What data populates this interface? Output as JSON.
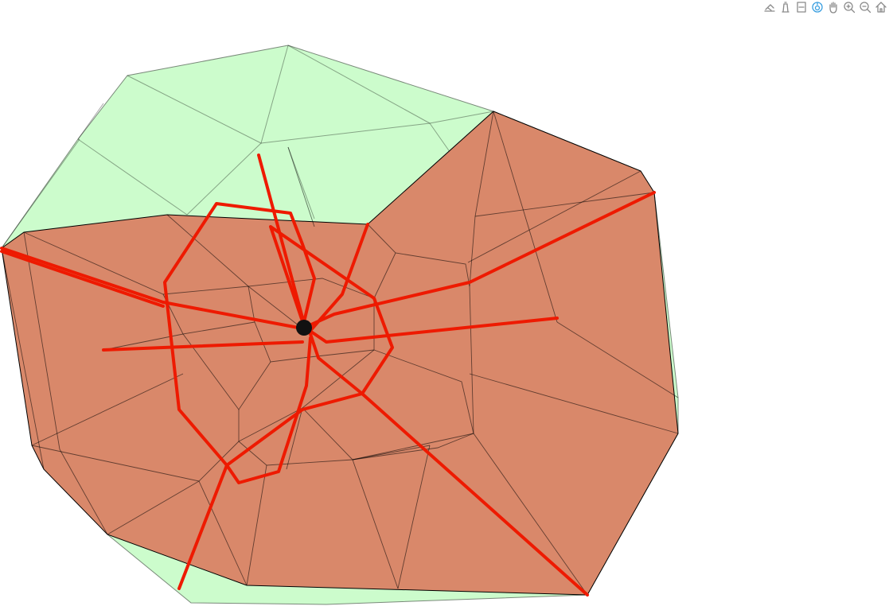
{
  "colors": {
    "outer_surface": "#ccfccc",
    "inner_surface": "#d9886a",
    "mesh_edge": "#000000",
    "route": "#ee1a00",
    "marker": "#111111",
    "icon_default": "#8a8a8a",
    "icon_active": "#3a9fe0"
  },
  "modebar": [
    {
      "icon": "rotate-3d-icon",
      "active": false
    },
    {
      "icon": "orbit-rotation-icon",
      "active": false
    },
    {
      "icon": "table-rotation-icon",
      "active": false
    },
    {
      "icon": "orbit-active-icon",
      "active": true
    },
    {
      "icon": "pan-hand-icon",
      "active": false
    },
    {
      "icon": "zoom-in-icon",
      "active": false
    },
    {
      "icon": "zoom-out-icon",
      "active": false
    },
    {
      "icon": "reset-home-icon",
      "active": false
    }
  ]
}
